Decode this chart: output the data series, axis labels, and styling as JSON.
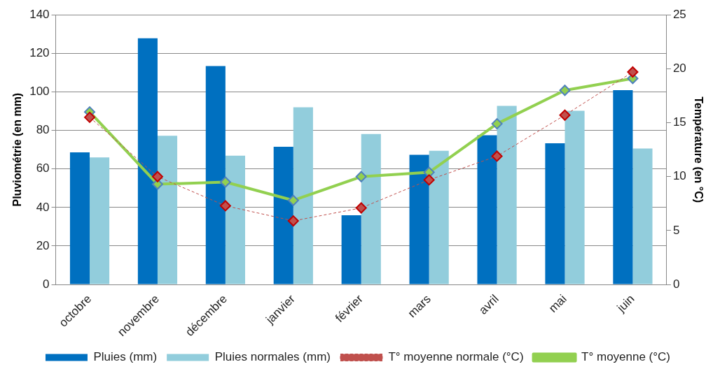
{
  "chart_data": {
    "type": "bar",
    "ylabel": "Pluviométrie (en mm)",
    "y2label": "Température (en °C)",
    "categories": [
      "octobre",
      "novembre",
      "décembre",
      "janvier",
      "février",
      "mars",
      "avril",
      "mai",
      "juin"
    ],
    "series": [
      {
        "name": "Pluies (mm)",
        "color": "#0070c0",
        "values": [
          68.6,
          127.8,
          113.4,
          71.5,
          36,
          67.3,
          77.5,
          73.3,
          100.9
        ]
      },
      {
        "name": "Pluies normales (mm)",
        "color": "#92cddc",
        "values": [
          66,
          77.2,
          66.9,
          92,
          78.1,
          69.4,
          92.7,
          90.2,
          70.6
        ]
      },
      {
        "name": "T° moyenne normale (°C)",
        "type": "line",
        "axis": "y2",
        "color": "#c0504d",
        "line_style": "dashed",
        "marker": "diamond",
        "values": [
          15.5,
          10,
          7.3,
          5.9,
          7.1,
          9.7,
          11.9,
          15.7,
          19.7
        ]
      },
      {
        "name": "T° moyenne (°C)",
        "type": "line",
        "axis": "y2",
        "color": "#92d050",
        "line_style": "solid",
        "marker": "diamond",
        "values": [
          16,
          9.3,
          9.5,
          7.8,
          10,
          10.4,
          14.9,
          18,
          19.1
        ]
      }
    ],
    "ylim": [
      0,
      140
    ],
    "yticks": [
      0,
      20,
      40,
      60,
      80,
      100,
      120,
      140
    ],
    "y2lim": [
      0,
      25
    ],
    "y2ticks": [
      0,
      5,
      10,
      15,
      20,
      25
    ],
    "grid": "y",
    "legend": "bottom"
  }
}
